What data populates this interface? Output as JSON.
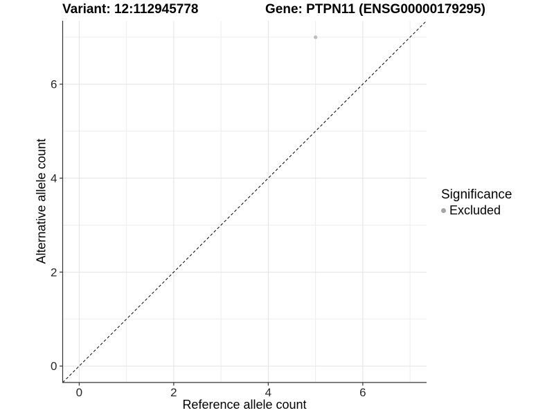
{
  "chart_data": {
    "type": "scatter",
    "title_left": "Variant: 12:112945778",
    "title_right": "Gene: PTPN11 (ENSG00000179295)",
    "xlabel": "Reference allele count",
    "ylabel": "Alternative allele count",
    "xlim": [
      -0.35,
      7.35
    ],
    "ylim": [
      -0.35,
      7.35
    ],
    "x_ticks": [
      0,
      2,
      4,
      6
    ],
    "y_ticks": [
      0,
      2,
      4,
      6
    ],
    "x_minor_gridlines": [
      1,
      3,
      5,
      7
    ],
    "y_minor_gridlines": [
      1,
      3,
      5,
      7
    ],
    "grid": "major+minor",
    "reference_line": {
      "slope": 1,
      "intercept": 0,
      "style": "dashed",
      "color": "#000000"
    },
    "series": [
      {
        "name": "Excluded",
        "color": "#bdbdbd",
        "points": [
          {
            "x": 5,
            "y": 7
          }
        ]
      }
    ],
    "legend": {
      "title": "Significance",
      "position": "right",
      "entries": [
        {
          "label": "Excluded",
          "color": "#a5a5a5"
        }
      ]
    },
    "colors": {
      "background": "#ffffff",
      "grid_major": "#e3e3e3",
      "grid_minor": "#ededed",
      "axis_line": "#333333",
      "tick_label": "#262626"
    }
  }
}
